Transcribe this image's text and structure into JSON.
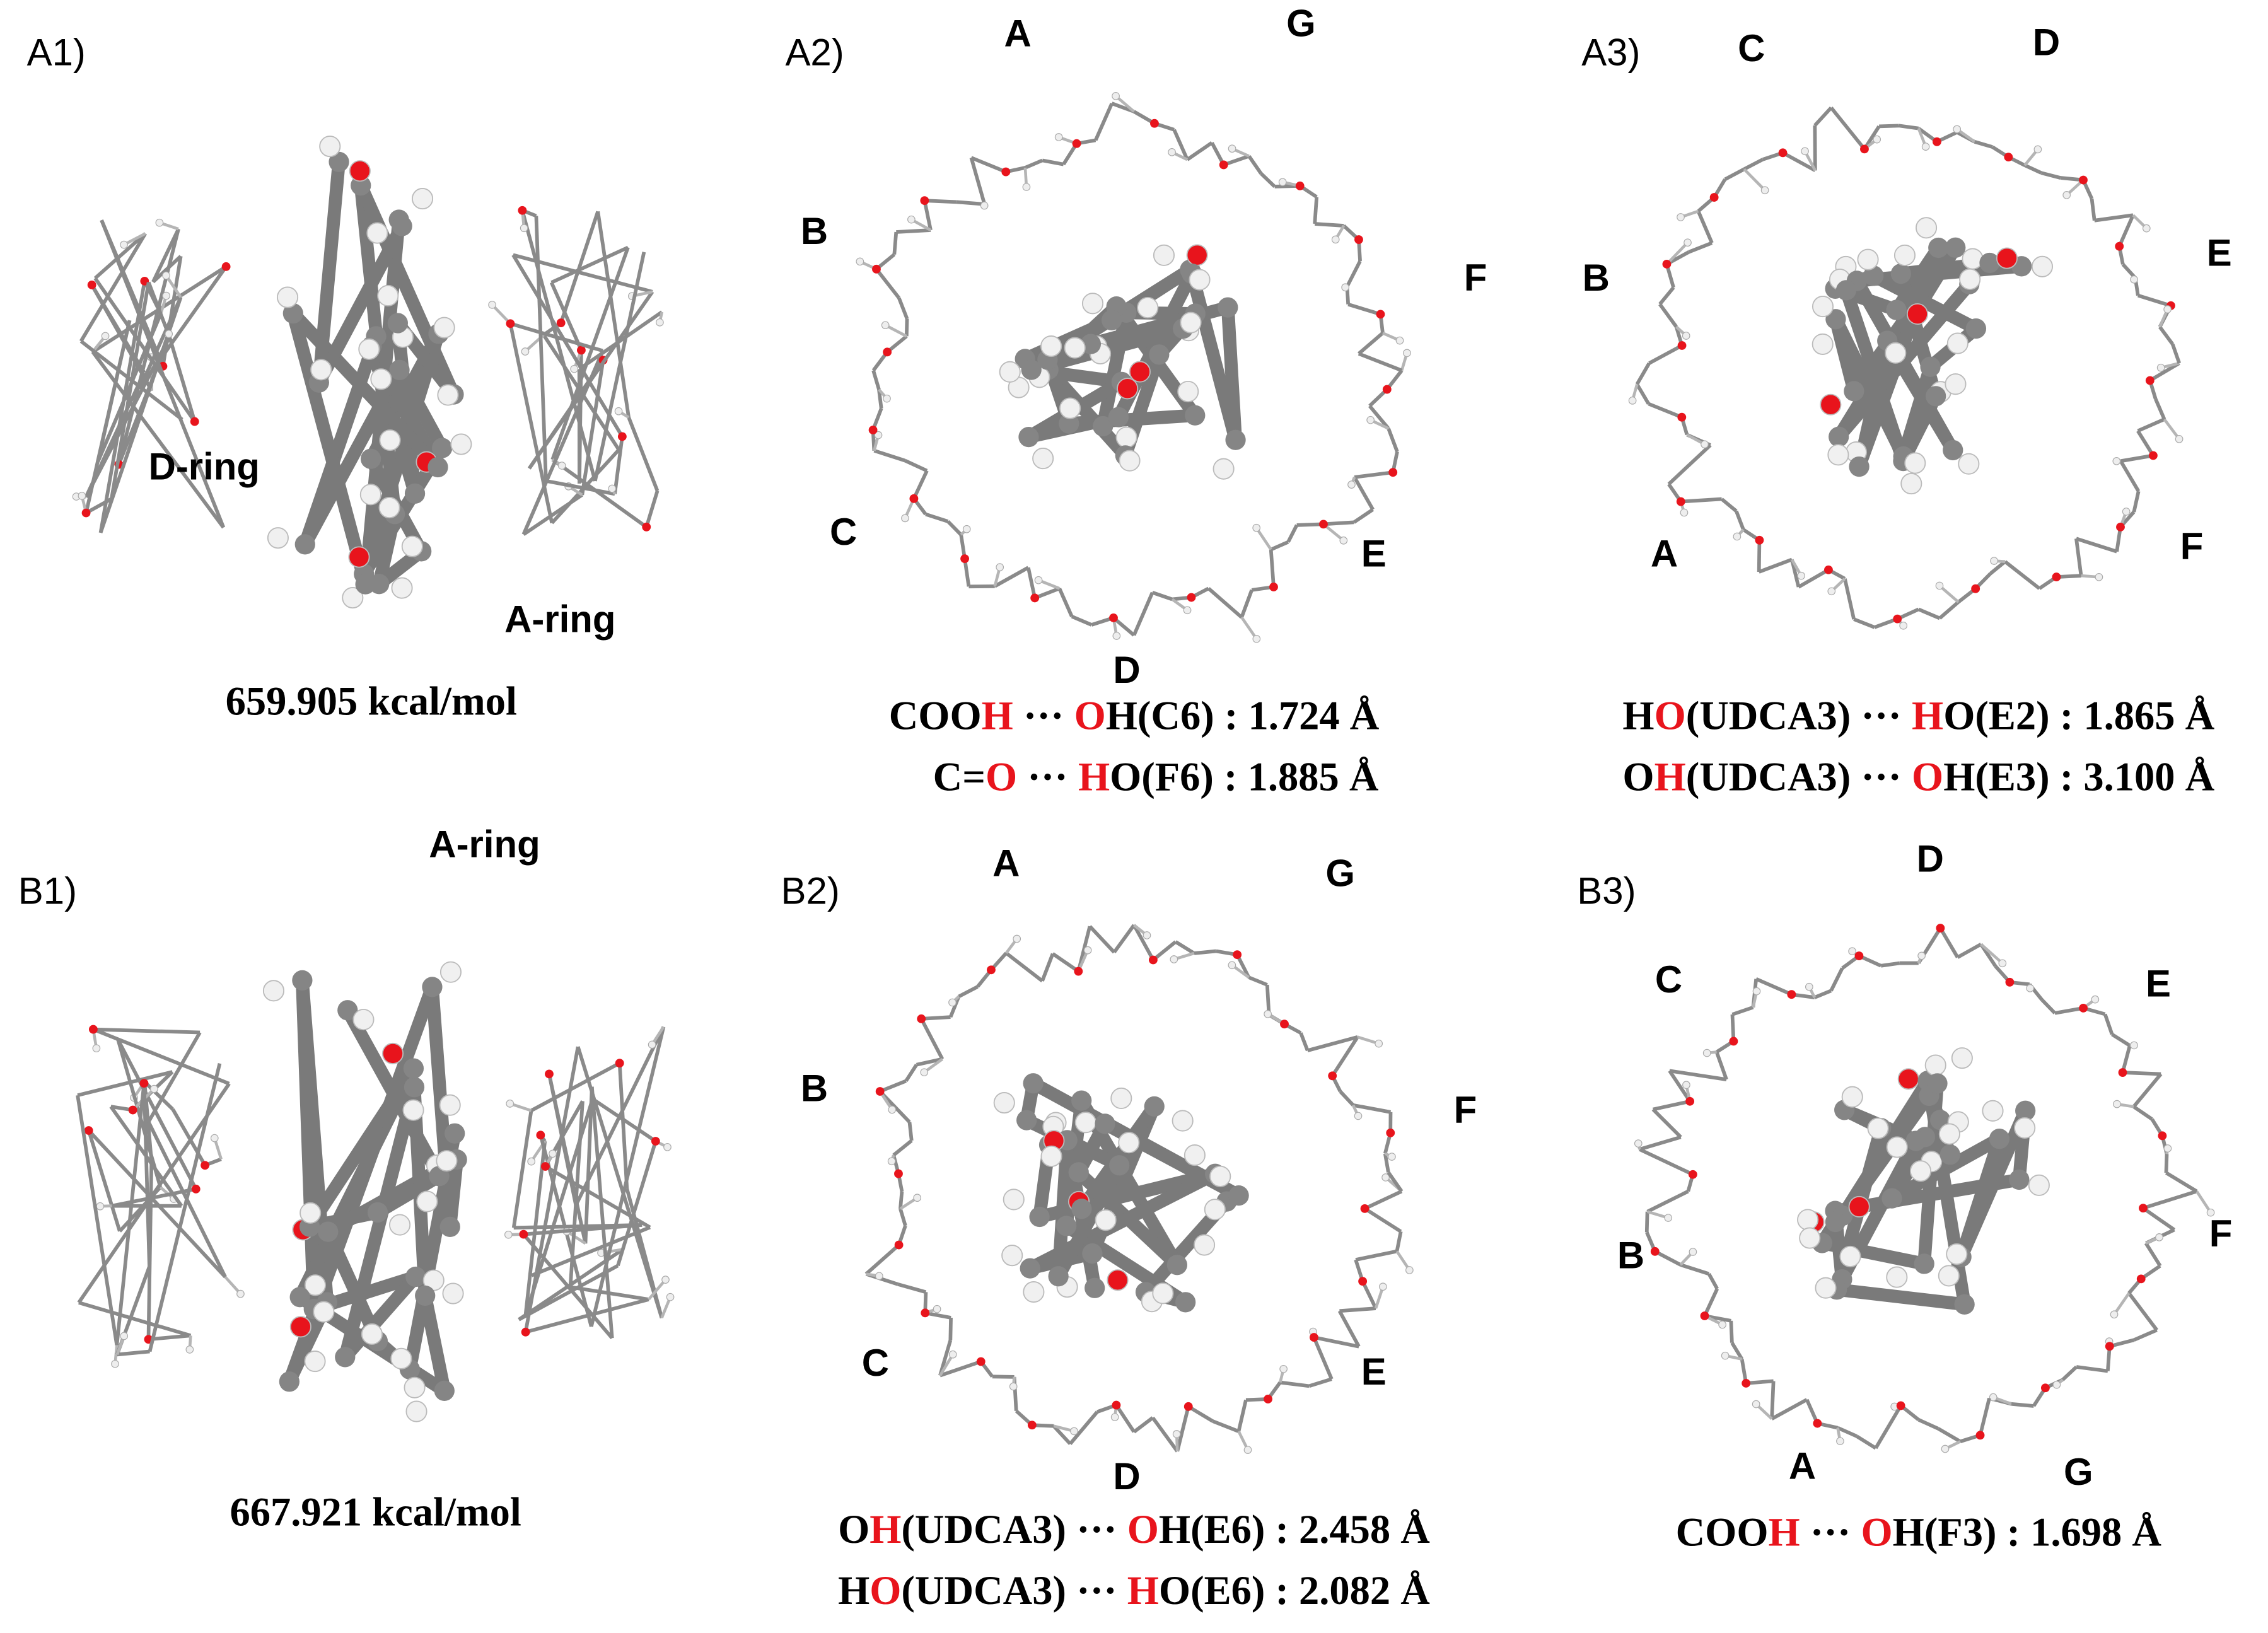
{
  "panels": [
    {
      "label": "A1)",
      "annotations": [
        "D-ring",
        "A-ring"
      ],
      "energy": "659.905 kcal/mol"
    },
    {
      "label": "A2)",
      "units": [
        "A",
        "G",
        "B",
        "F",
        "C",
        "E",
        "D"
      ],
      "captions": [
        [
          {
            "text": "COO",
            "color": "#000000"
          },
          {
            "text": "H",
            "color": "#e8141c"
          },
          {
            "text": " ··· ",
            "color": "#000000"
          },
          {
            "text": "O",
            "color": "#e8141c"
          },
          {
            "text": "H(C6) : 1.724 Å",
            "color": "#000000"
          }
        ],
        [
          {
            "text": "C=",
            "color": "#000000"
          },
          {
            "text": "O",
            "color": "#e8141c"
          },
          {
            "text": " ··· ",
            "color": "#000000"
          },
          {
            "text": "H",
            "color": "#e8141c"
          },
          {
            "text": "O(F6) : 1.885 Å",
            "color": "#000000"
          }
        ]
      ]
    },
    {
      "label": "A3)",
      "units": [
        "C",
        "D",
        "B",
        "E",
        "A",
        "F"
      ],
      "captions": [
        [
          {
            "text": "H",
            "color": "#000000"
          },
          {
            "text": "O",
            "color": "#e8141c"
          },
          {
            "text": "(UDCA3) ··· ",
            "color": "#000000"
          },
          {
            "text": "H",
            "color": "#e8141c"
          },
          {
            "text": "O(E2) : 1.865 Å",
            "color": "#000000"
          }
        ],
        [
          {
            "text": "O",
            "color": "#000000"
          },
          {
            "text": "H",
            "color": "#e8141c"
          },
          {
            "text": "(UDCA3) ··· ",
            "color": "#000000"
          },
          {
            "text": "O",
            "color": "#e8141c"
          },
          {
            "text": "H(E3) : 3.100 Å",
            "color": "#000000"
          }
        ]
      ]
    },
    {
      "label": "B1)",
      "annotations": [
        "A-ring"
      ],
      "energy": "667.921 kcal/mol"
    },
    {
      "label": "B2)",
      "units": [
        "A",
        "G",
        "B",
        "F",
        "C",
        "E",
        "D"
      ],
      "captions": [
        [
          {
            "text": "O",
            "color": "#000000"
          },
          {
            "text": "H",
            "color": "#e8141c"
          },
          {
            "text": "(UDCA3) ··· ",
            "color": "#000000"
          },
          {
            "text": "O",
            "color": "#e8141c"
          },
          {
            "text": "H(E6) : 2.458 Å",
            "color": "#000000"
          }
        ],
        [
          {
            "text": "H",
            "color": "#000000"
          },
          {
            "text": "O",
            "color": "#e8141c"
          },
          {
            "text": "(UDCA3) ··· ",
            "color": "#000000"
          },
          {
            "text": "H",
            "color": "#e8141c"
          },
          {
            "text": "O(E6) : 2.082 Å",
            "color": "#000000"
          }
        ]
      ]
    },
    {
      "label": "B3)",
      "units": [
        "D",
        "C",
        "E",
        "B",
        "F",
        "A",
        "G"
      ],
      "captions": [
        [
          {
            "text": "COO",
            "color": "#000000"
          },
          {
            "text": "H",
            "color": "#e8141c"
          },
          {
            "text": " ··· ",
            "color": "#000000"
          },
          {
            "text": "O",
            "color": "#e8141c"
          },
          {
            "text": "H(F3) : 1.698 Å",
            "color": "#000000"
          }
        ]
      ]
    }
  ]
}
